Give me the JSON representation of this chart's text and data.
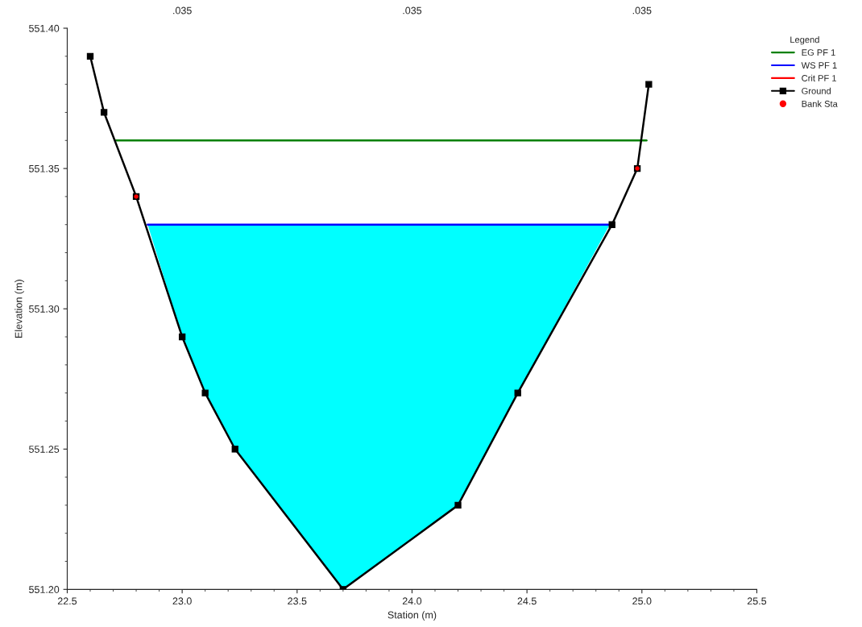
{
  "chart_data": {
    "type": "line",
    "xlabel": "Station (m)",
    "ylabel": "Elevation (m)",
    "legend_title": "Legend",
    "series": [
      {
        "name": "EG PF 1",
        "color": "#008000",
        "x": [
          22.71,
          25.02
        ],
        "values": [
          551.36,
          551.36
        ]
      },
      {
        "name": "WS PF 1",
        "color": "#0000ff",
        "x": [
          22.85,
          23.0,
          23.1,
          23.23,
          23.7,
          24.2,
          24.46,
          24.86
        ],
        "values": [
          551.33,
          551.33,
          551.33,
          551.33,
          551.33,
          551.33,
          551.33,
          551.33
        ],
        "lower": [
          551.33,
          551.29,
          551.27,
          551.25,
          551.2,
          551.23,
          551.27,
          551.33
        ],
        "upper": [
          551.33,
          551.33,
          551.33,
          551.33,
          551.33,
          551.33,
          551.33,
          551.33
        ]
      },
      {
        "name": "Crit PF 1",
        "color": "#ff0000"
      },
      {
        "name": "Ground",
        "color": "#000000",
        "marker": "square",
        "x": [
          22.6,
          22.66,
          22.8,
          23.0,
          23.1,
          23.23,
          23.7,
          24.2,
          24.46,
          24.87,
          24.98,
          25.03
        ],
        "values": [
          551.39,
          551.37,
          551.34,
          551.29,
          551.27,
          551.25,
          551.2,
          551.23,
          551.27,
          551.33,
          551.35,
          551.38
        ]
      },
      {
        "name": "Bank Sta",
        "type": "scatter",
        "color": "#ff0000",
        "marker": "circle",
        "x": [
          22.8,
          24.98
        ],
        "values": [
          551.34,
          551.35
        ]
      }
    ],
    "annotations": [
      ".035",
      ".035",
      ".035"
    ],
    "xlim": [
      22.5,
      25.5
    ],
    "xticks": [
      {
        "value": 22.5,
        "label": "22.5"
      },
      {
        "value": 23.0,
        "label": "23.0"
      },
      {
        "value": 23.5,
        "label": "23.5"
      },
      {
        "value": 24.0,
        "label": "24.0"
      },
      {
        "value": 24.5,
        "label": "24.5"
      },
      {
        "value": 25.0,
        "label": "25.0"
      },
      {
        "value": 25.5,
        "label": "25.5"
      }
    ],
    "ylim": [
      551.2,
      551.4
    ],
    "yticks": [
      {
        "value": 551.2,
        "label": "551.20"
      },
      {
        "value": 551.25,
        "label": "551.25"
      },
      {
        "value": 551.3,
        "label": "551.30"
      },
      {
        "value": 551.35,
        "label": "551.35"
      },
      {
        "value": 551.4,
        "label": "551.40"
      }
    ],
    "grid": false,
    "legend": "top right"
  }
}
